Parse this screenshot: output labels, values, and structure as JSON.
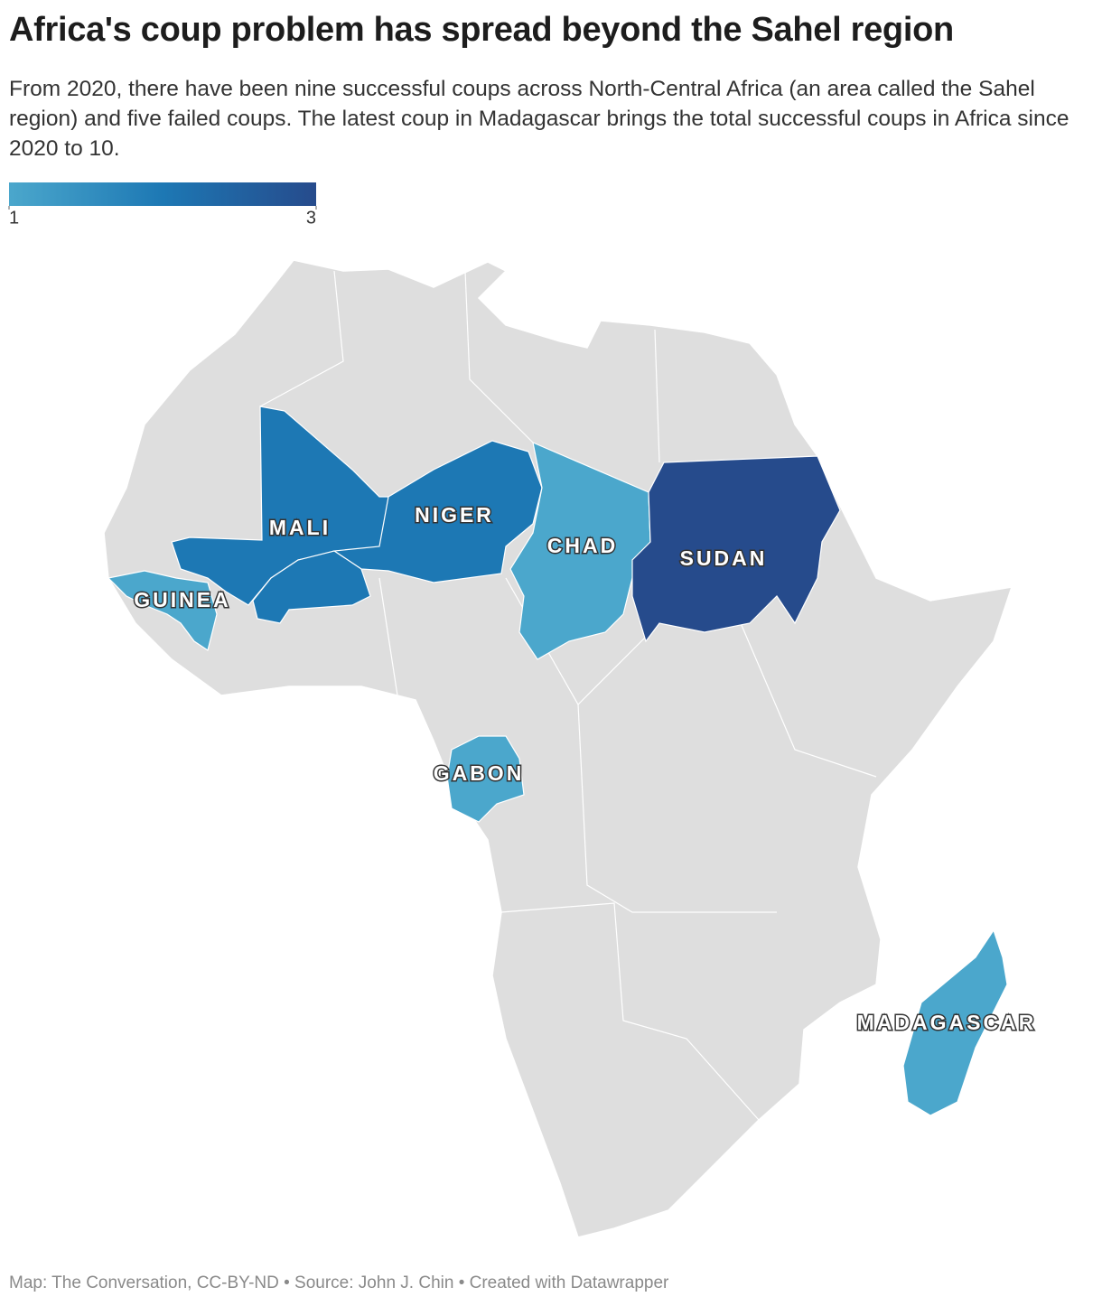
{
  "chart_data": {
    "type": "choropleth",
    "title": "Africa's coup problem has spread beyond the Sahel region",
    "subtitle": "From 2020, there have been nine successful coups across North-Central Africa (an area called the Sahel region) and five failed coups. The latest coup in Madagascar brings the total successful coups in Africa since 2020 to 10.",
    "legend_range": [
      1,
      3
    ],
    "legend_ticks": [
      1,
      3
    ],
    "colorscale": [
      "#4ba7cc",
      "#1d78b4",
      "#264b8c"
    ],
    "regions": [
      {
        "name": "MALI",
        "value": 2
      },
      {
        "name": "NIGER",
        "value": 2
      },
      {
        "name": null,
        "value": 2
      },
      {
        "name": "CHAD",
        "value": 1
      },
      {
        "name": "SUDAN",
        "value": 3
      },
      {
        "name": "GUINEA",
        "value": 1
      },
      {
        "name": "GABON",
        "value": 1
      },
      {
        "name": "MADAGASCAR",
        "value": 1
      }
    ],
    "footer": "Map: The Conversation, CC-BY-ND • Source: John J. Chin • Created with Datawrapper"
  }
}
